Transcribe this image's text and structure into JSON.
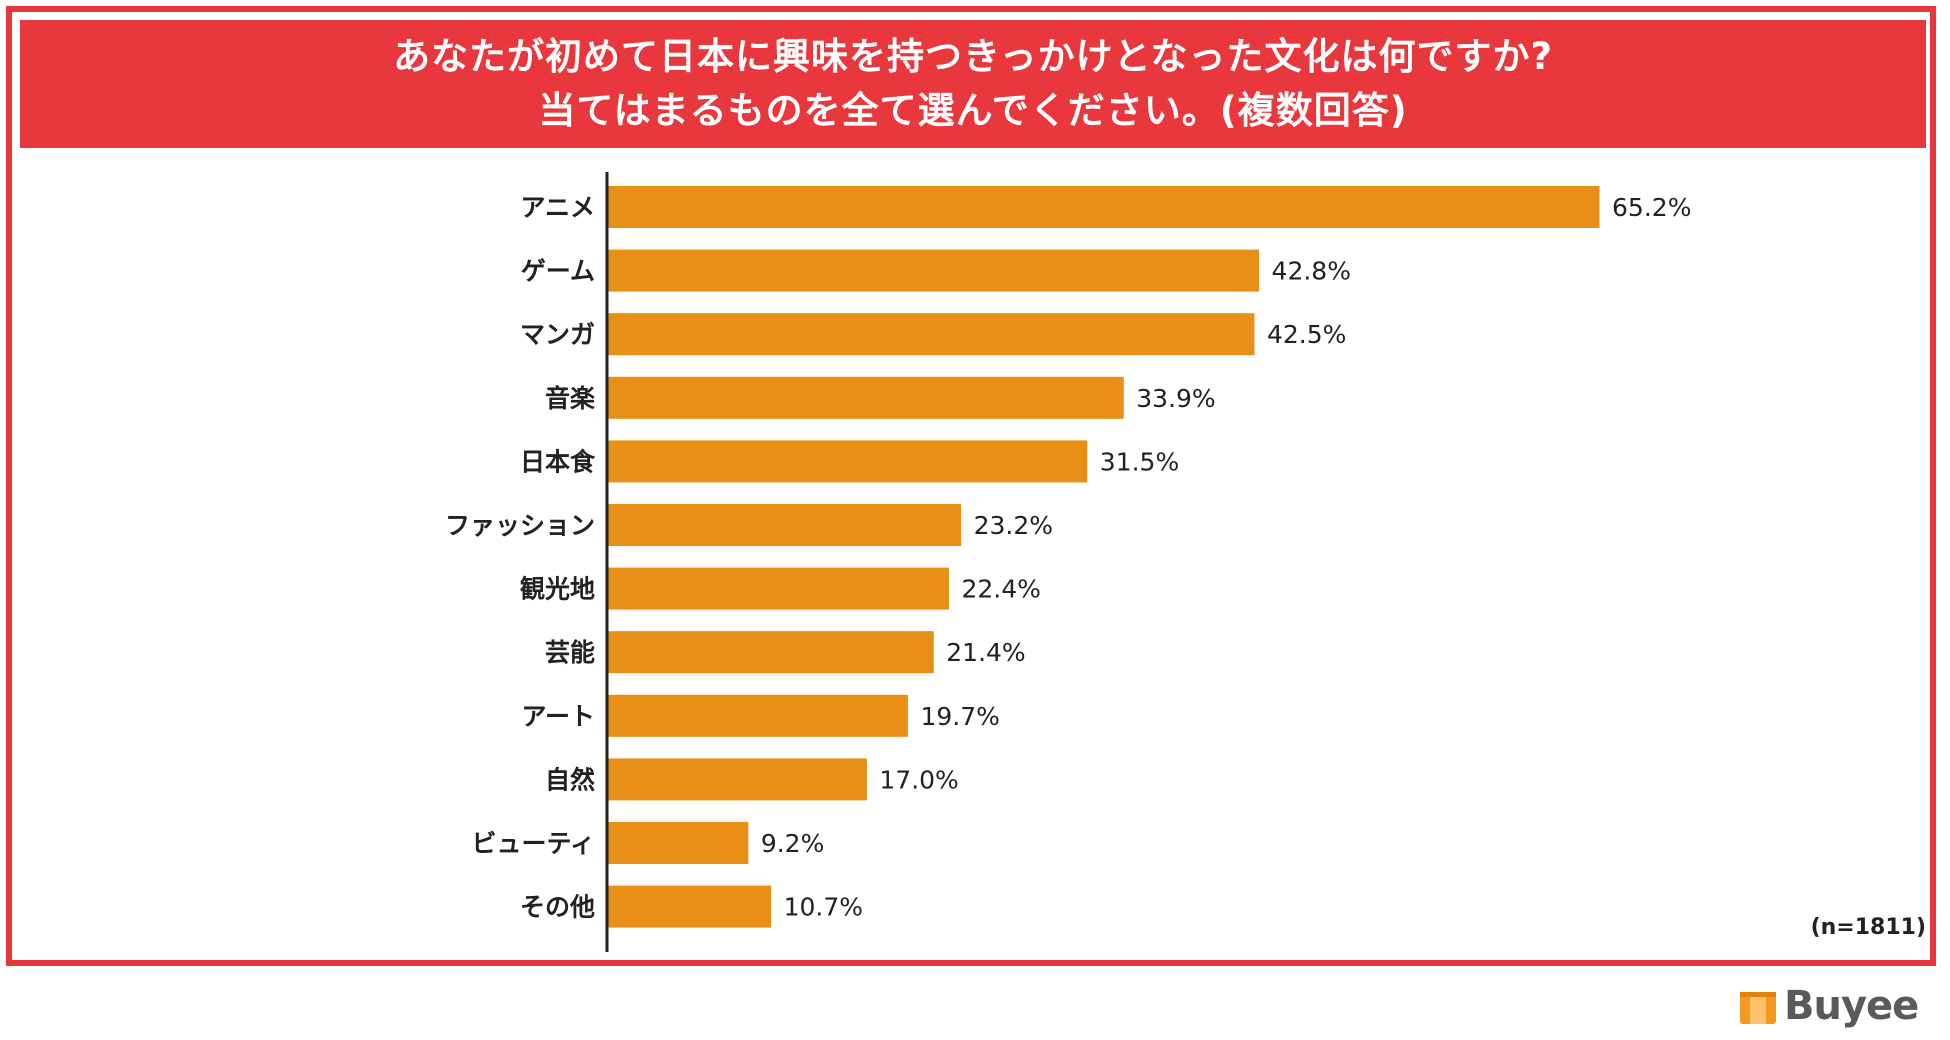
{
  "title": {
    "line1": "あなたが初めて日本に興味を持つきっかけとなった文化は何ですか?",
    "line2": "当てはまるものを全て選んでください。(複数回答)"
  },
  "sample_note": "(n=1811)",
  "brand": {
    "name": "Buyee"
  },
  "colors": {
    "frame": "#e8383d",
    "bar": "#e88f17",
    "logo_orange": "#f39a1e",
    "text": "#222222"
  },
  "chart_data": {
    "type": "bar",
    "orientation": "horizontal",
    "title": "あなたが初めて日本に興味を持つきっかけとなった文化は何ですか? 当てはまるものを全て選んでください。(複数回答)",
    "unit": "%",
    "categories": [
      "アニメ",
      "ゲーム",
      "マンガ",
      "音楽",
      "日本食",
      "ファッション",
      "観光地",
      "芸能",
      "アート",
      "自然",
      "ビューティ",
      "その他"
    ],
    "values": [
      65.2,
      42.8,
      42.5,
      33.9,
      31.5,
      23.2,
      22.4,
      21.4,
      19.7,
      17.0,
      9.2,
      10.7
    ],
    "value_labels": [
      "65.2%",
      "42.8%",
      "42.5%",
      "33.9%",
      "31.5%",
      "23.2%",
      "22.4%",
      "21.4%",
      "19.7%",
      "17.0%",
      "9.2%",
      "10.7%"
    ],
    "xlim": [
      0,
      100
    ],
    "grid": false,
    "legend": "none"
  }
}
